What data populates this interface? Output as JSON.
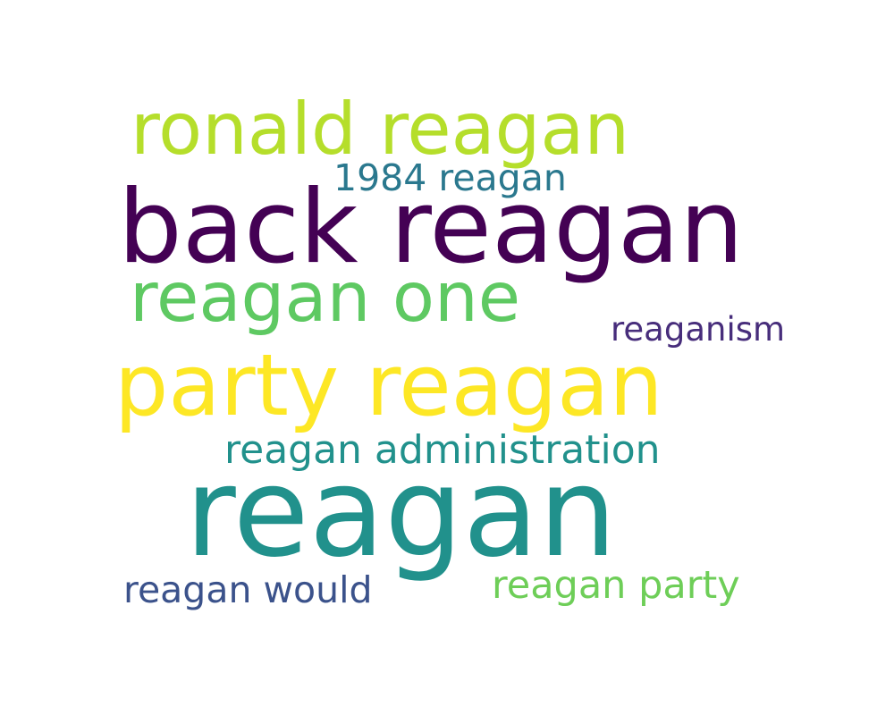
{
  "words": [
    {
      "text": "reagan",
      "color": "#21918c"
    },
    {
      "text": "back reagan",
      "color": "#440154"
    },
    {
      "text": "party reagan",
      "color": "#fde725"
    },
    {
      "text": "ronald reagan",
      "color": "#b5de2b"
    },
    {
      "text": "reagan one",
      "color": "#5ec962"
    },
    {
      "text": "reagan administration",
      "color": "#21918c"
    },
    {
      "text": "reagan party",
      "color": "#6ece58"
    },
    {
      "text": "reagan would",
      "color": "#3b528b"
    },
    {
      "text": "1984 reagan",
      "color": "#2a788e"
    },
    {
      "text": "reaganism",
      "color": "#472d7b"
    }
  ]
}
